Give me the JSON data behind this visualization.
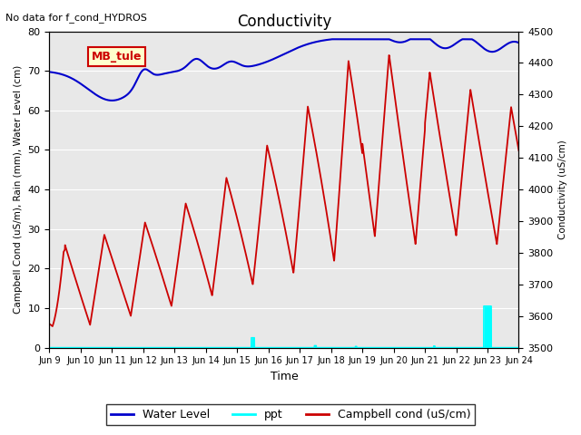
{
  "title": "Conductivity",
  "top_left_text": "No data for f_cond_HYDROS",
  "ylabel_left": "Campbell Cond (uS/m), Rain (mm), Water Level (cm)",
  "ylabel_right": "Conductivity (uS/cm)",
  "xlabel": "Time",
  "ylim_left": [
    0,
    80
  ],
  "ylim_right": [
    3500,
    4500
  ],
  "xtick_labels": [
    "Jun 9",
    "Jun 10",
    "Jun 11",
    "Jun 12",
    "Jun 13",
    "Jun 14",
    "Jun 15",
    "Jun 16",
    "Jun 17",
    "Jun 18",
    "Jun 19",
    "Jun 20",
    "Jun 21",
    "Jun 22",
    "Jun 23",
    "Jun 24"
  ],
  "legend_labels": [
    "Water Level",
    "ppt",
    "Campbell cond (uS/cm)"
  ],
  "box_label": "MB_tule",
  "box_color": "#ffffcc",
  "box_border_color": "#cc0000",
  "bg_color": "#e8e8e8",
  "water_level_color": "#0000cc",
  "ppt_color": "cyan",
  "campbell_color": "#cc0000",
  "grid_color": "#ffffff",
  "yticks_left": [
    0,
    10,
    20,
    30,
    40,
    50,
    60,
    70,
    80
  ],
  "yticks_right": [
    3500,
    3600,
    3700,
    3800,
    3900,
    4000,
    4100,
    4200,
    4300,
    4400,
    4500
  ]
}
